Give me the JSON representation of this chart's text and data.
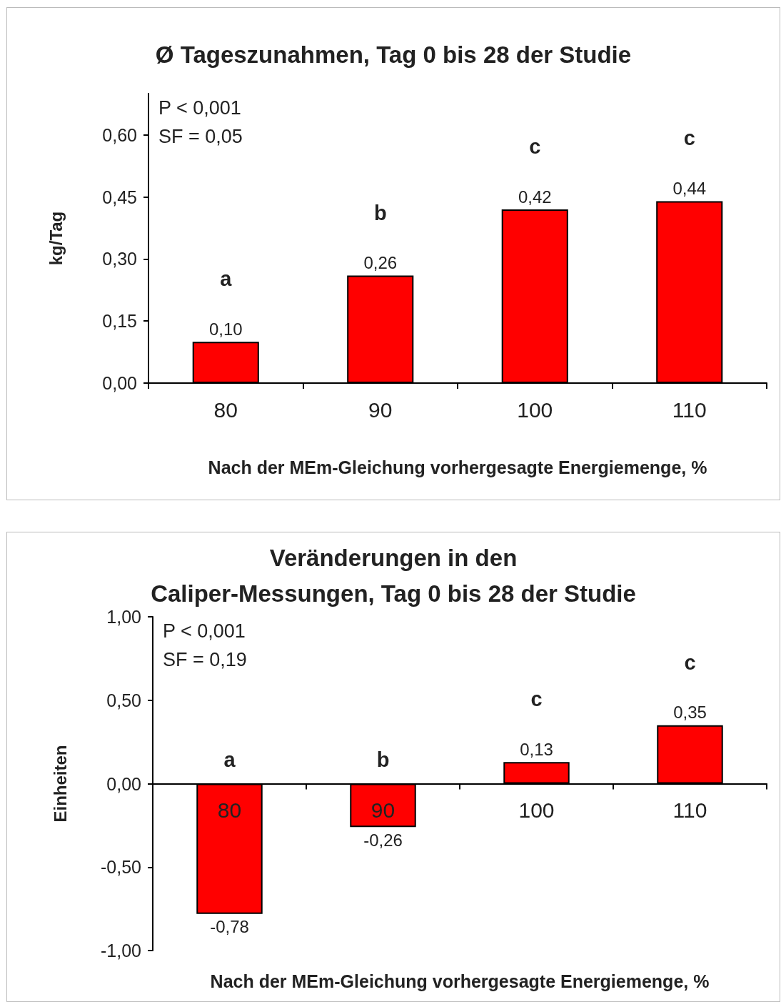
{
  "chart_data": [
    {
      "type": "bar",
      "title": "Ø Tageszunahmen, Tag 0 bis 28 der Studie",
      "xlabel": "Nach der MEm-Gleichung vorhergesagte Energiemenge, %",
      "ylabel": "kg/Tag",
      "categories": [
        "80",
        "90",
        "100",
        "110"
      ],
      "values": [
        0.1,
        0.26,
        0.42,
        0.44
      ],
      "color": "#ff0000",
      "value_labels": [
        "0,10",
        "0,26",
        "0,42",
        "0,44"
      ],
      "ylim": [
        0,
        0.7
      ],
      "yticks": [
        {
          "value": 0,
          "label": "0,00"
        },
        {
          "value": 0.15,
          "label": "0,15"
        },
        {
          "value": 0.3,
          "label": "0,30"
        },
        {
          "value": 0.45,
          "label": "0,45"
        },
        {
          "value": 0.6,
          "label": "0,60"
        }
      ],
      "annotations": [
        "P < 0,001",
        "SF = 0,05",
        "a",
        "b",
        "c",
        "c"
      ]
    },
    {
      "type": "bar",
      "title": "Veränderungen in den\nCaliper-Messungen, Tag 0 bis 28 der Studie",
      "xlabel": "Nach der MEm-Gleichung vorhergesagte Energiemenge, %",
      "ylabel": "Einheiten",
      "categories": [
        "80",
        "90",
        "100",
        "110"
      ],
      "values": [
        -0.78,
        -0.26,
        0.13,
        0.35
      ],
      "color": "#ff0000",
      "value_labels": [
        "-0,78",
        "-0,26",
        "0,13",
        "0,35"
      ],
      "ylim": [
        -1,
        1
      ],
      "yticks": [
        {
          "value": -1,
          "label": "-1,00"
        },
        {
          "value": -0.5,
          "label": "-0,50"
        },
        {
          "value": 0,
          "label": "0,00"
        },
        {
          "value": 0.5,
          "label": "0,50"
        },
        {
          "value": 1,
          "label": "1,00"
        }
      ],
      "annotations": [
        "P < 0,001",
        "SF = 0,19",
        "a",
        "b",
        "c",
        "c"
      ]
    }
  ]
}
